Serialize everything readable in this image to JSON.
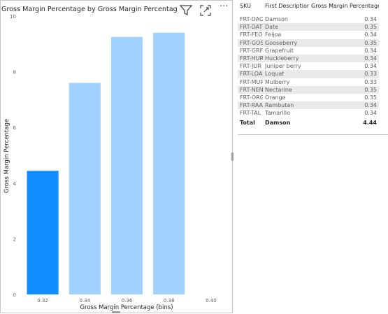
{
  "chart": {
    "title": "Gross Margin Percentage by Gross Margin Percentage (b",
    "icons": [
      "filter-icon",
      "focus-mode-icon",
      "more-options-icon"
    ],
    "more_label": "···"
  },
  "chart_data": {
    "type": "bar",
    "title": "Gross Margin Percentage by Gross Margin Percentage (b",
    "xlabel": "Gross Margin Percentage (bins)",
    "ylabel": "Gross Margin Percentage",
    "ylim": [
      0,
      10
    ],
    "y_ticks": [
      "0",
      "2",
      "4",
      "6",
      "8",
      "10"
    ],
    "x_ticks": [
      "0.32",
      "0.34",
      "0.36",
      "0.38",
      "0.40"
    ],
    "xlim": [
      0.31,
      0.41
    ],
    "bars": [
      {
        "x0": 0.3125,
        "x1": 0.3275,
        "value": 4.44,
        "highlighted": true
      },
      {
        "x0": 0.3325,
        "x1": 0.3475,
        "value": 7.6,
        "highlighted": false
      },
      {
        "x0": 0.3525,
        "x1": 0.3675,
        "value": 9.25,
        "highlighted": false
      },
      {
        "x0": 0.3725,
        "x1": 0.3875,
        "value": 9.4,
        "highlighted": false
      }
    ],
    "colors": {
      "highlighted": "#118DFF",
      "faded": "#A0D1FF"
    }
  },
  "table": {
    "headers": [
      "SKU",
      "First Description",
      "Gross Margin Percentage"
    ],
    "rows": [
      [
        "FRT-DAO",
        "Damson",
        "0.34"
      ],
      [
        "FRT-DAT",
        "Date",
        "0.35"
      ],
      [
        "FRT-FEO",
        "Feijoa",
        "0.34"
      ],
      [
        "FRT-GOS",
        "Gooseberry",
        "0.35"
      ],
      [
        "FRT-GRF",
        "Grapefruit",
        "0.34"
      ],
      [
        "FRT-HUR",
        "Huckleberry",
        "0.34"
      ],
      [
        "FRT-JUR",
        "Juniper berry",
        "0.34"
      ],
      [
        "FRT-LOA",
        "Loquat",
        "0.33"
      ],
      [
        "FRT-MUR",
        "Mulberry",
        "0.33"
      ],
      [
        "FRT-NEN",
        "Nectarine",
        "0.35"
      ],
      [
        "FRT-ORG",
        "Orange",
        "0.35"
      ],
      [
        "FRT-RAA",
        "Rambutan",
        "0.34"
      ],
      [
        "FRT-TAL",
        "Tamarillo",
        "0.34"
      ]
    ],
    "total": [
      "Total",
      "Damson",
      "4.44"
    ]
  }
}
